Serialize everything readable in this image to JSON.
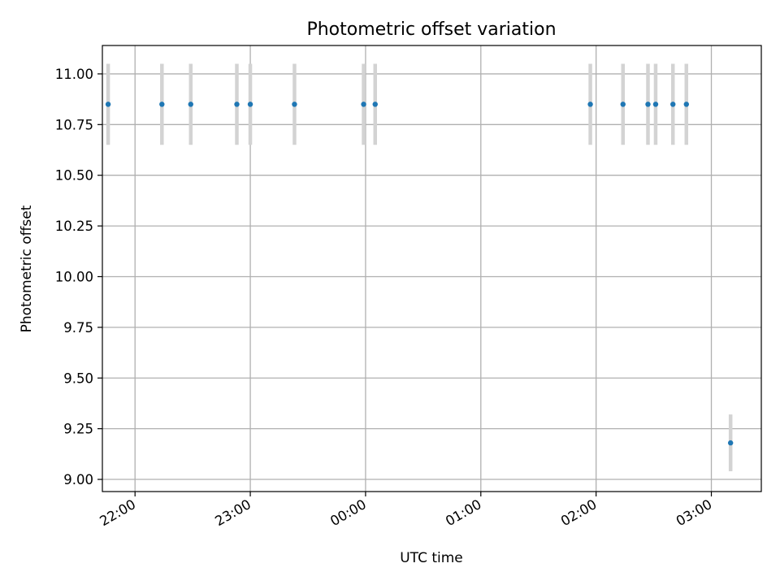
{
  "chart_data": {
    "type": "scatter",
    "title": "Photometric offset variation",
    "xlabel": "UTC time",
    "ylabel": "Photometric offset",
    "x_kind": "time",
    "xlim": [
      "21:43",
      "03:26"
    ],
    "ylim": [
      8.94,
      11.14
    ],
    "x_ticks": [
      "22:00",
      "23:00",
      "00:00",
      "01:00",
      "02:00",
      "03:00"
    ],
    "y_ticks": [
      9.0,
      9.25,
      9.5,
      9.75,
      10.0,
      10.25,
      10.5,
      10.75,
      11.0
    ],
    "y_tick_labels": [
      "9.00",
      "9.25",
      "9.50",
      "9.75",
      "10.00",
      "10.25",
      "10.50",
      "10.75",
      "11.00"
    ],
    "grid": true,
    "error_bars": true,
    "points": [
      {
        "time": "21:46",
        "y": 10.85,
        "yerr": 0.2
      },
      {
        "time": "22:14",
        "y": 10.85,
        "yerr": 0.2
      },
      {
        "time": "22:29",
        "y": 10.85,
        "yerr": 0.2
      },
      {
        "time": "22:53",
        "y": 10.85,
        "yerr": 0.2
      },
      {
        "time": "23:00",
        "y": 10.85,
        "yerr": 0.2
      },
      {
        "time": "23:23",
        "y": 10.85,
        "yerr": 0.2
      },
      {
        "time": "23:59",
        "y": 10.85,
        "yerr": 0.2
      },
      {
        "time": "00:05",
        "y": 10.85,
        "yerr": 0.2
      },
      {
        "time": "01:57",
        "y": 10.85,
        "yerr": 0.2
      },
      {
        "time": "02:14",
        "y": 10.85,
        "yerr": 0.2
      },
      {
        "time": "02:27",
        "y": 10.85,
        "yerr": 0.2
      },
      {
        "time": "02:31",
        "y": 10.85,
        "yerr": 0.2
      },
      {
        "time": "02:40",
        "y": 10.85,
        "yerr": 0.2
      },
      {
        "time": "02:47",
        "y": 10.85,
        "yerr": 0.2
      },
      {
        "time": "03:10",
        "y": 9.18,
        "yerr": 0.14
      }
    ],
    "colors": {
      "point": "#1f77b4",
      "errorbar": "#d3d3d3",
      "grid": "#b0b0b0",
      "axis": "#000000"
    }
  }
}
